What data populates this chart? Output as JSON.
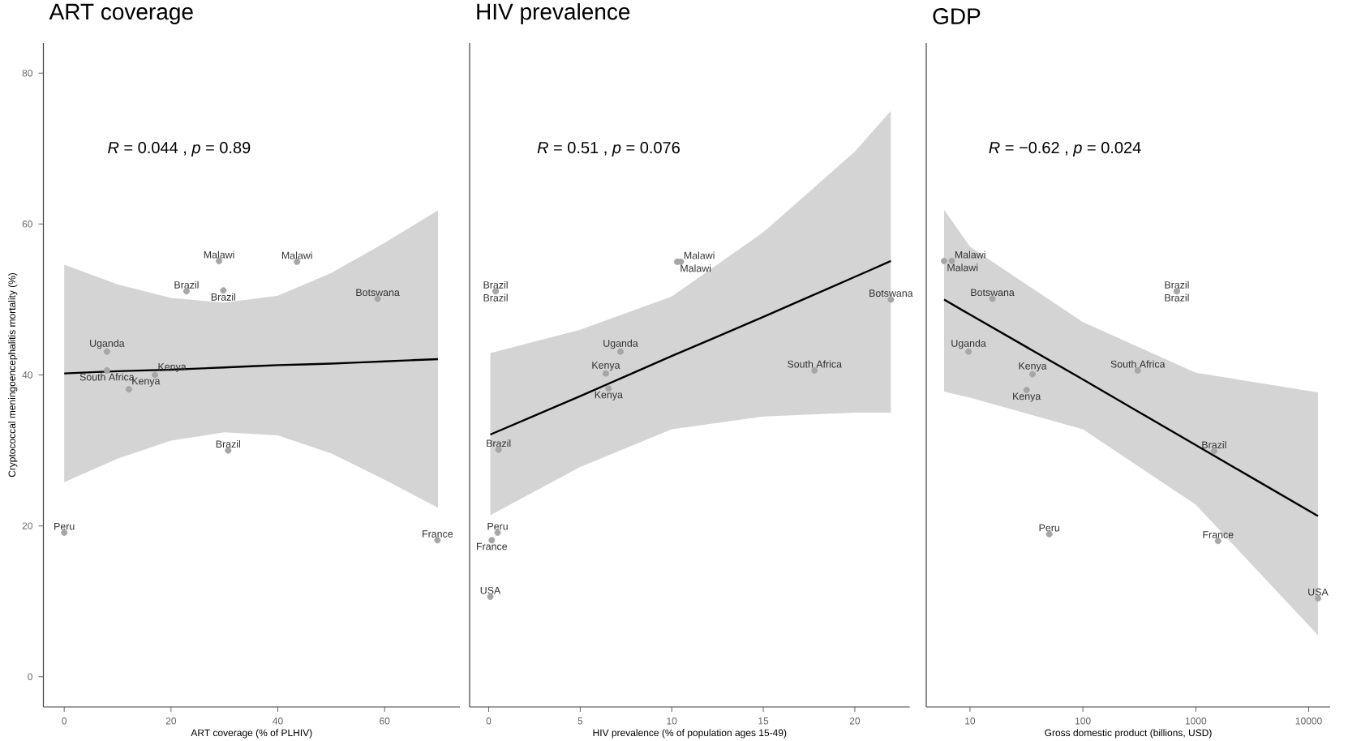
{
  "chart_data": [
    {
      "type": "scatter",
      "title": "ART coverage",
      "xlabel": "ART coverage (% of PLHIV)",
      "ylabel": "Cryptococcal meningoencephalitis mortality (%)",
      "xlim": [
        -3.9,
        74.1
      ],
      "ylim": [
        -4,
        84
      ],
      "xticks": [
        0,
        20,
        40,
        60
      ],
      "yticks": [
        0,
        20,
        40,
        60,
        80
      ],
      "annotations": [
        "*R* = 0.044 , *p* = 0.89"
      ],
      "series": [
        {
          "type": "line",
          "color": "#000000",
          "x": [
            0,
            10,
            20,
            30,
            40,
            50,
            60,
            70
          ],
          "values": [
            40.2,
            40.5,
            40.7,
            41.0,
            41.3,
            41.5,
            41.8,
            42.1
          ],
          "upper": [
            54.6,
            52.0,
            50.2,
            49.6,
            50.5,
            53.5,
            57.5,
            61.8
          ],
          "lower": [
            25.8,
            28.9,
            31.3,
            32.4,
            32.0,
            29.6,
            26.1,
            22.4
          ]
        },
        {
          "type": "scatter",
          "color": "#a6a6a6",
          "x": [
            0,
            8.0,
            8.0,
            12.1,
            17.0,
            22.9,
            29.0,
            29.8,
            30.7,
            43.6,
            58.7,
            69.9
          ],
          "values": [
            19.1,
            43.1,
            40.6,
            38.1,
            40.0,
            51.1,
            55.1,
            51.2,
            30.0,
            55.0,
            50.1,
            18.1
          ],
          "value_labels": [
            "Peru",
            "Uganda",
            "South Africa",
            "Kenya",
            "Kenya",
            "Brazil",
            "Malawi",
            "Brazil",
            "Brazil",
            "Malawi",
            "Botswana",
            "France"
          ]
        }
      ]
    },
    {
      "type": "scatter",
      "title": "HIV prevalence",
      "xlabel": "HIV prevalence (% of population ages 15-49)",
      "xlim": [
        -1.04,
        23.0
      ],
      "ylim": [
        -4,
        84
      ],
      "xticks": [
        0,
        5,
        10,
        15,
        20
      ],
      "tick_labels": "x",
      "annotations": [
        "*R* = 0.51 , *p* = 0.076"
      ],
      "series": [
        {
          "type": "line",
          "color": "#000000",
          "x": [
            0.09,
            5,
            10,
            15,
            20,
            21.97
          ],
          "values": [
            32.1,
            37.2,
            42.5,
            47.7,
            53.0,
            55.1
          ],
          "upper": [
            42.9,
            46.0,
            50.4,
            58.9,
            69.6,
            75.0
          ],
          "lower": [
            21.4,
            27.8,
            32.8,
            34.5,
            35.0,
            35.0
          ]
        },
        {
          "type": "scatter",
          "color": "#a6a6a6",
          "x": [
            0.09,
            0.17,
            0.38,
            0.38,
            0.49,
            0.54,
            6.4,
            6.55,
            7.2,
            10.3,
            10.5,
            17.8,
            21.97
          ],
          "values": [
            10.6,
            18.1,
            51.1,
            51.1,
            19.1,
            30.1,
            40.2,
            38.2,
            43.1,
            55.0,
            55.0,
            40.6,
            50.0
          ],
          "value_labels": [
            "USA",
            "France",
            "Brazil",
            "Brazil",
            "Peru",
            "Brazil",
            "Kenya",
            "Kenya",
            "Uganda",
            "Malawi",
            "Malawi",
            "South Africa",
            "Botswana"
          ]
        }
      ]
    },
    {
      "type": "scatter",
      "title": "GDP",
      "xlabel": "Gross domestic product (billions, USD)",
      "xlim": [
        4.1,
        15500
      ],
      "ylim": [
        -4,
        84
      ],
      "xticks": [
        10,
        100,
        1000,
        10000
      ],
      "log": "x",
      "tick_labels": "x",
      "annotations": [
        "*R* = −0.62 , *p* = 0.024"
      ],
      "series": [
        {
          "type": "line",
          "color": "#000000",
          "x": [
            5.9,
            10,
            100,
            1000,
            12080
          ],
          "values": [
            50.0,
            48.0,
            39.4,
            30.7,
            21.3
          ],
          "upper": [
            61.9,
            57.0,
            47.0,
            40.3,
            37.7
          ],
          "lower": [
            37.8,
            37.0,
            32.8,
            22.8,
            5.5
          ]
        },
        {
          "type": "scatter",
          "color": "#a6a6a6",
          "x": [
            5.9,
            6.9,
            9.7,
            15.8,
            31.7,
            35.8,
            50.4,
            306,
            679,
            679,
            1452,
            1575,
            12080
          ],
          "values": [
            55.1,
            55.1,
            43.1,
            50.1,
            38.0,
            40.1,
            18.9,
            40.6,
            51.1,
            51.1,
            29.9,
            18.0,
            10.4
          ],
          "value_labels": [
            "Malawi",
            "Malawi",
            "Uganda",
            "Botswana",
            "Kenya",
            "Kenya",
            "Peru",
            "South Africa",
            "Brazil",
            "Brazil",
            "Brazil",
            "France",
            "USA"
          ]
        }
      ]
    }
  ]
}
